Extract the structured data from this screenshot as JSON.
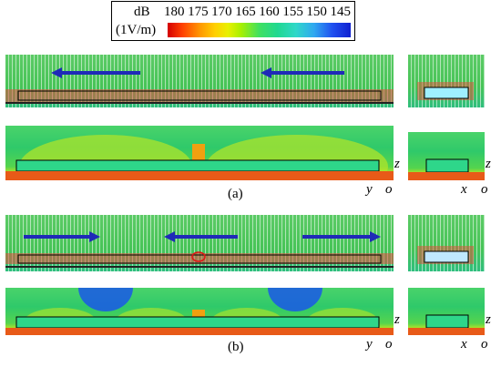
{
  "legend": {
    "unit_top": "dB",
    "unit_bottom": "(1V/m)",
    "ticks": [
      "180",
      "175",
      "170",
      "165",
      "160",
      "155",
      "150",
      "145"
    ]
  },
  "captions": {
    "a": "(a)",
    "b": "(b)"
  },
  "axes": {
    "z": "z",
    "y": "y",
    "x": "x",
    "o": "o"
  },
  "colors": {
    "arrow": "#1f2ab8",
    "bar_red": "#e01414",
    "bar_orange": "#f07a10"
  }
}
